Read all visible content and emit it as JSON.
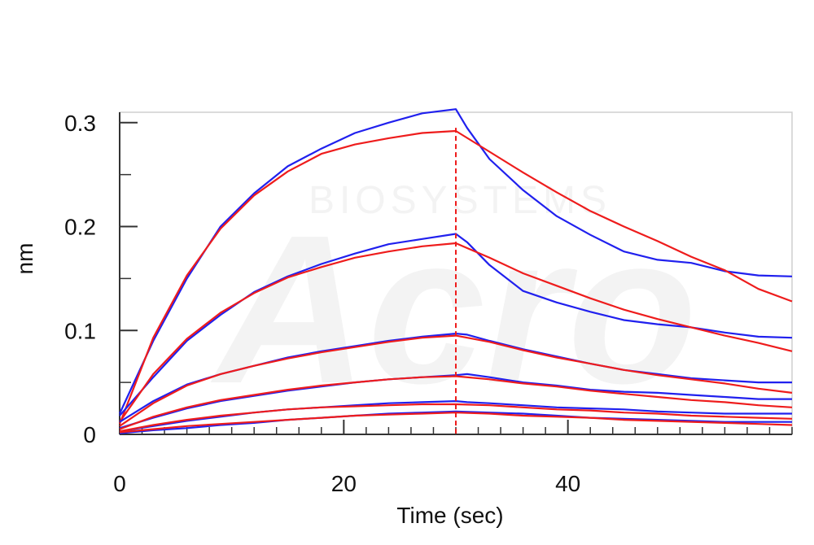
{
  "chart_data": {
    "type": "line",
    "title": "",
    "xlabel": "Time (sec)",
    "ylabel": "nm",
    "xlim": [
      0,
      60
    ],
    "ylim": [
      0,
      0.31
    ],
    "x_ticks": [
      0,
      20,
      40
    ],
    "x_tick_labels": [
      "0",
      "20",
      "40"
    ],
    "y_ticks": [
      0,
      0.1,
      0.2,
      0.3
    ],
    "y_tick_labels": [
      "0",
      "0.1",
      "0.2",
      "0.3"
    ],
    "x_minor_step": 2,
    "y_minor_step": 0.05,
    "grid": false,
    "legend": "none",
    "dissociation_start": 30,
    "colors": {
      "measured": "#2020ee",
      "fit": "#ee1c1c",
      "axis": "#333333"
    },
    "watermark": {
      "text": "BIOSYSTEMS",
      "logo": "Acro"
    },
    "series": [
      {
        "kind": "measured",
        "x": [
          0,
          3,
          6,
          9,
          12,
          15,
          18,
          21,
          24,
          27,
          30,
          31,
          33,
          36,
          39,
          42,
          45,
          48,
          51,
          54,
          57,
          60
        ],
        "y": [
          0.02,
          0.09,
          0.15,
          0.2,
          0.232,
          0.258,
          0.275,
          0.29,
          0.3,
          0.309,
          0.313,
          0.295,
          0.265,
          0.235,
          0.21,
          0.192,
          0.176,
          0.168,
          0.165,
          0.157,
          0.153,
          0.152
        ]
      },
      {
        "kind": "fit",
        "x": [
          0,
          3,
          6,
          9,
          12,
          15,
          18,
          21,
          24,
          27,
          30,
          33,
          36,
          39,
          42,
          45,
          48,
          51,
          54,
          57,
          60
        ],
        "y": [
          0.01,
          0.093,
          0.153,
          0.198,
          0.23,
          0.253,
          0.27,
          0.279,
          0.285,
          0.29,
          0.292,
          0.272,
          0.252,
          0.233,
          0.215,
          0.2,
          0.186,
          0.171,
          0.158,
          0.14,
          0.128
        ]
      },
      {
        "kind": "measured",
        "x": [
          0,
          3,
          6,
          9,
          12,
          15,
          18,
          21,
          24,
          27,
          30,
          31,
          33,
          36,
          39,
          42,
          45,
          48,
          51,
          54,
          57,
          60
        ],
        "y": [
          0.018,
          0.055,
          0.09,
          0.115,
          0.137,
          0.152,
          0.164,
          0.174,
          0.183,
          0.188,
          0.193,
          0.185,
          0.163,
          0.138,
          0.127,
          0.118,
          0.11,
          0.106,
          0.103,
          0.098,
          0.094,
          0.093
        ]
      },
      {
        "kind": "fit",
        "x": [
          0,
          3,
          6,
          9,
          12,
          15,
          18,
          21,
          24,
          27,
          30,
          33,
          36,
          39,
          42,
          45,
          48,
          51,
          54,
          57,
          60
        ],
        "y": [
          0.012,
          0.058,
          0.092,
          0.117,
          0.136,
          0.151,
          0.161,
          0.17,
          0.176,
          0.181,
          0.184,
          0.17,
          0.155,
          0.143,
          0.131,
          0.12,
          0.111,
          0.103,
          0.095,
          0.088,
          0.08
        ]
      },
      {
        "kind": "measured",
        "x": [
          0,
          3,
          6,
          9,
          12,
          15,
          18,
          21,
          24,
          27,
          30,
          31,
          33,
          36,
          39,
          42,
          45,
          48,
          51,
          54,
          57,
          60
        ],
        "y": [
          0.012,
          0.032,
          0.048,
          0.058,
          0.066,
          0.074,
          0.08,
          0.085,
          0.09,
          0.094,
          0.097,
          0.096,
          0.09,
          0.082,
          0.075,
          0.068,
          0.062,
          0.058,
          0.054,
          0.052,
          0.05,
          0.05
        ]
      },
      {
        "kind": "fit",
        "x": [
          0,
          3,
          6,
          9,
          12,
          15,
          18,
          21,
          24,
          27,
          30,
          33,
          36,
          39,
          42,
          45,
          48,
          51,
          54,
          57,
          60
        ],
        "y": [
          0.008,
          0.03,
          0.047,
          0.058,
          0.066,
          0.073,
          0.079,
          0.084,
          0.089,
          0.093,
          0.095,
          0.089,
          0.081,
          0.074,
          0.068,
          0.062,
          0.057,
          0.053,
          0.049,
          0.044,
          0.04
        ]
      },
      {
        "kind": "measured",
        "x": [
          0,
          3,
          6,
          9,
          12,
          15,
          18,
          21,
          24,
          27,
          30,
          31,
          33,
          36,
          39,
          42,
          45,
          48,
          51,
          54,
          57,
          60
        ],
        "y": [
          0.006,
          0.016,
          0.025,
          0.032,
          0.037,
          0.042,
          0.046,
          0.05,
          0.053,
          0.055,
          0.057,
          0.058,
          0.055,
          0.05,
          0.047,
          0.043,
          0.041,
          0.04,
          0.038,
          0.036,
          0.034,
          0.034
        ]
      },
      {
        "kind": "fit",
        "x": [
          0,
          3,
          6,
          9,
          12,
          15,
          18,
          21,
          24,
          27,
          30,
          33,
          36,
          39,
          42,
          45,
          48,
          51,
          54,
          57,
          60
        ],
        "y": [
          0.005,
          0.017,
          0.026,
          0.033,
          0.038,
          0.043,
          0.047,
          0.05,
          0.053,
          0.055,
          0.056,
          0.053,
          0.049,
          0.046,
          0.042,
          0.039,
          0.036,
          0.033,
          0.031,
          0.028,
          0.026
        ]
      },
      {
        "kind": "measured",
        "x": [
          0,
          3,
          6,
          9,
          12,
          15,
          18,
          21,
          24,
          27,
          30,
          31,
          33,
          36,
          39,
          42,
          45,
          48,
          51,
          54,
          57,
          60
        ],
        "y": [
          0.003,
          0.008,
          0.013,
          0.017,
          0.021,
          0.024,
          0.026,
          0.028,
          0.03,
          0.031,
          0.032,
          0.031,
          0.03,
          0.028,
          0.026,
          0.025,
          0.024,
          0.022,
          0.021,
          0.02,
          0.02,
          0.02
        ]
      },
      {
        "kind": "fit",
        "x": [
          0,
          3,
          6,
          9,
          12,
          15,
          18,
          21,
          24,
          27,
          30,
          33,
          36,
          39,
          42,
          45,
          48,
          51,
          54,
          57,
          60
        ],
        "y": [
          0.003,
          0.009,
          0.014,
          0.018,
          0.021,
          0.024,
          0.026,
          0.027,
          0.028,
          0.029,
          0.029,
          0.028,
          0.026,
          0.024,
          0.023,
          0.021,
          0.02,
          0.018,
          0.017,
          0.016,
          0.015
        ]
      },
      {
        "kind": "measured",
        "x": [
          0,
          3,
          6,
          9,
          12,
          15,
          18,
          21,
          24,
          27,
          30,
          33,
          36,
          39,
          42,
          45,
          48,
          51,
          54,
          57,
          60
        ],
        "y": [
          0.001,
          0.004,
          0.006,
          0.009,
          0.011,
          0.014,
          0.016,
          0.018,
          0.02,
          0.021,
          0.022,
          0.021,
          0.02,
          0.018,
          0.016,
          0.015,
          0.014,
          0.013,
          0.012,
          0.012,
          0.012
        ]
      },
      {
        "kind": "fit",
        "x": [
          0,
          3,
          6,
          9,
          12,
          15,
          18,
          21,
          24,
          27,
          30,
          33,
          36,
          39,
          42,
          45,
          48,
          51,
          54,
          57,
          60
        ],
        "y": [
          0.002,
          0.005,
          0.008,
          0.01,
          0.012,
          0.014,
          0.016,
          0.018,
          0.019,
          0.02,
          0.021,
          0.02,
          0.018,
          0.017,
          0.016,
          0.014,
          0.013,
          0.012,
          0.011,
          0.01,
          0.009
        ]
      }
    ]
  }
}
